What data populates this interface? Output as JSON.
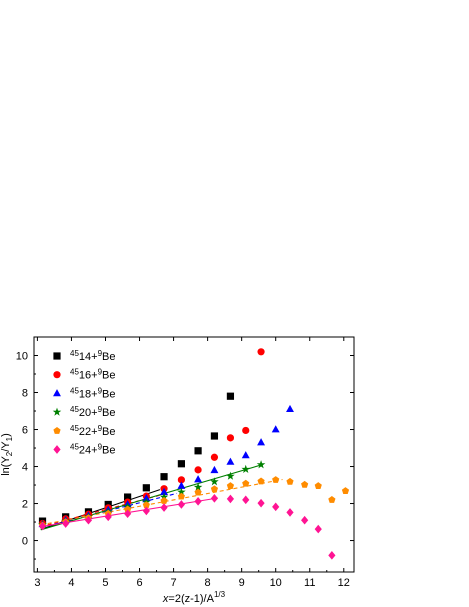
{
  "chart_data": {
    "type": "scatter",
    "xlabel": {
      "prefix": "x",
      "main": "=2(z-1)/A",
      "sup": "1/3"
    },
    "ylabel": {
      "prefix": "ln(Y",
      "sub1": "2",
      "mid": "/Y",
      "sub2": "1",
      "suffix": ")"
    },
    "xlim": [
      2.9,
      12.3
    ],
    "ylim": [
      -1.7,
      11.0
    ],
    "xticks": [
      3,
      4,
      5,
      6,
      7,
      8,
      9,
      10,
      11,
      12
    ],
    "yticks": [
      0,
      2,
      4,
      6,
      8,
      10
    ],
    "legend_position": "top-left",
    "series": [
      {
        "name": "14+9Be",
        "name_parts": {
          "sup1": "45",
          "main": "14+",
          "sup2": "9",
          "tail": "Be"
        },
        "color": "#000000",
        "marker": "square",
        "x": [
          3.15,
          3.83,
          4.5,
          5.08,
          5.65,
          6.2,
          6.72,
          7.23,
          7.72,
          8.2,
          8.67
        ],
        "y": [
          1.05,
          1.28,
          1.55,
          1.95,
          2.35,
          2.85,
          3.45,
          4.15,
          4.85,
          5.65,
          7.8
        ],
        "fit": {
          "x": [
            3.1,
            6.6
          ],
          "y": [
            0.6,
            2.75
          ],
          "style": "solid"
        }
      },
      {
        "name": "16+9Be",
        "name_parts": {
          "sup1": "45",
          "main": "16+",
          "sup2": "9",
          "tail": "Be"
        },
        "color": "#ff0000",
        "marker": "circle",
        "x": [
          3.15,
          3.83,
          4.5,
          5.08,
          5.65,
          6.2,
          6.72,
          7.23,
          7.72,
          8.2,
          8.67,
          9.12,
          9.57
        ],
        "y": [
          0.92,
          1.17,
          1.42,
          1.77,
          2.08,
          2.4,
          2.8,
          3.28,
          3.82,
          4.5,
          5.55,
          5.95,
          10.2
        ],
        "fit": {
          "x": [
            3.1,
            6.6
          ],
          "y": [
            0.75,
            2.45
          ],
          "style": "dashed"
        }
      },
      {
        "name": "18+9Be",
        "name_parts": {
          "sup1": "45",
          "main": "18+",
          "sup2": "9",
          "tail": "Be"
        },
        "color": "#0000ff",
        "marker": "triangle",
        "x": [
          3.15,
          3.83,
          4.5,
          5.08,
          5.65,
          6.2,
          6.72,
          7.23,
          7.72,
          8.2,
          8.67,
          9.12,
          9.57,
          10.0,
          10.42
        ],
        "y": [
          0.88,
          1.1,
          1.35,
          1.65,
          1.95,
          2.28,
          2.62,
          2.95,
          3.3,
          3.8,
          4.25,
          4.6,
          5.3,
          6.0,
          7.1
        ],
        "fit": {
          "x": [
            3.1,
            7.1
          ],
          "y": [
            0.7,
            2.55
          ],
          "style": "dashed"
        }
      },
      {
        "name": "20+9Be",
        "name_parts": {
          "sup1": "45",
          "main": "20+",
          "sup2": "9",
          "tail": "Be"
        },
        "color": "#008000",
        "marker": "star",
        "x": [
          3.15,
          3.83,
          4.5,
          5.08,
          5.65,
          6.2,
          6.72,
          7.23,
          7.72,
          8.2,
          8.67,
          9.12,
          9.57
        ],
        "y": [
          0.86,
          1.05,
          1.28,
          1.55,
          1.82,
          2.08,
          2.35,
          2.62,
          2.88,
          3.18,
          3.48,
          3.85,
          4.1
        ],
        "fit": {
          "x": [
            3.1,
            9.6
          ],
          "y": [
            0.58,
            4.1
          ],
          "style": "solid"
        }
      },
      {
        "name": "22+9Be",
        "name_parts": {
          "sup1": "45",
          "main": "22+",
          "sup2": "9",
          "tail": "Be"
        },
        "color": "#ff8c00",
        "marker": "pentagon",
        "x": [
          3.15,
          3.83,
          4.5,
          5.08,
          5.65,
          6.2,
          6.72,
          7.23,
          7.72,
          8.2,
          8.67,
          9.12,
          9.57,
          10.0,
          10.42,
          10.85,
          11.25,
          11.65,
          12.05
        ],
        "y": [
          0.82,
          1.0,
          1.22,
          1.45,
          1.68,
          1.92,
          2.15,
          2.38,
          2.6,
          2.78,
          2.95,
          3.08,
          3.2,
          3.28,
          3.18,
          3.02,
          2.95,
          2.2,
          2.68
        ],
        "fit": {
          "x": [
            3.1,
            10.2
          ],
          "y": [
            0.85,
            3.3
          ],
          "style": "dashed"
        }
      },
      {
        "name": "24+9Be",
        "name_parts": {
          "sup1": "45",
          "main": "24+",
          "sup2": "9",
          "tail": "Be"
        },
        "color": "#ff1493",
        "marker": "diamond",
        "x": [
          3.15,
          3.83,
          4.5,
          5.08,
          5.65,
          6.2,
          6.72,
          7.23,
          7.72,
          8.2,
          8.67,
          9.12,
          9.57,
          10.0,
          10.42,
          10.85,
          11.25,
          11.65
        ],
        "y": [
          0.78,
          0.92,
          1.1,
          1.28,
          1.45,
          1.6,
          1.78,
          1.95,
          2.12,
          2.28,
          2.25,
          2.2,
          2.02,
          1.82,
          1.52,
          1.1,
          0.62,
          -0.8
        ],
        "fit": {
          "x": [
            3.1,
            8.3
          ],
          "y": [
            0.75,
            2.3
          ],
          "style": "solid"
        }
      }
    ]
  }
}
